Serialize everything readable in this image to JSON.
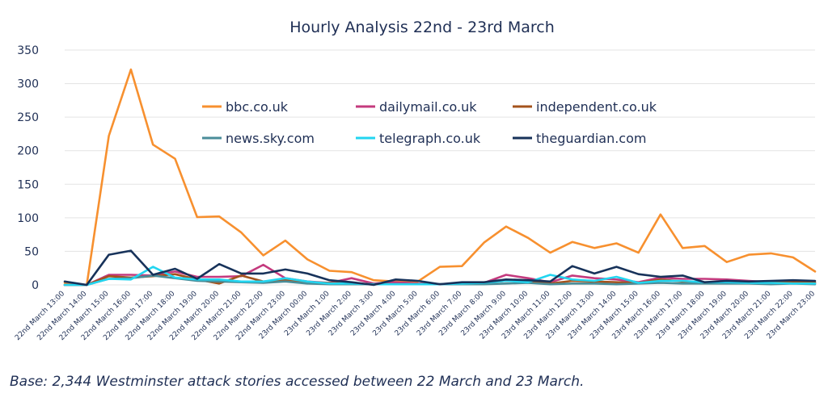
{
  "caption": "Base: 2,344 Westminster attack stories accessed between 22 March and 23 March.",
  "chart_data": {
    "type": "line",
    "title": "Hourly Analysis 22nd - 23rd March",
    "xlabel": "",
    "ylabel": "",
    "ylim": [
      0,
      350
    ],
    "yticks": [
      0,
      50,
      100,
      150,
      200,
      250,
      300,
      350
    ],
    "grid": true,
    "legend_position": "inside-top-center",
    "categories": [
      "22nd March 13:00",
      "22nd March 14:00",
      "22nd March 15:00",
      "22nd March 16:00",
      "22nd March 17:00",
      "22nd March 18:00",
      "22nd March 19:00",
      "22nd March 20:00",
      "22nd March 21:00",
      "22nd March 22:00",
      "22nd March 23:00",
      "23rd March 00:00",
      "23rd March 1:00",
      "23rd March 2:00",
      "23rd March 3:00",
      "23rd March 4:00",
      "23rd March 5:00",
      "23rd March 6:00",
      "23rd March 7:00",
      "23rd March 8:00",
      "23rd March 9:00",
      "23rd March 10:00",
      "23rd March 11:00",
      "23rd March 12:00",
      "23rd March 13:00",
      "23rd March 14:00",
      "23rd March 15:00",
      "23rd March 16:00",
      "23rd March 17:00",
      "23rd March 18:00",
      "23rd March 19:00",
      "23rd March 20:00",
      "23rd March 21:00",
      "23rd March 22:00",
      "23rd March 23:00"
    ],
    "series": [
      {
        "name": "bbc.co.uk",
        "color": "#f7902f",
        "values": [
          3,
          0,
          222,
          321,
          209,
          188,
          101,
          102,
          78,
          44,
          66,
          38,
          21,
          19,
          7,
          5,
          5,
          27,
          28,
          63,
          87,
          70,
          48,
          64,
          55,
          62,
          48,
          105,
          55,
          58,
          34,
          45,
          47,
          41,
          20
        ]
      },
      {
        "name": "dailymail.co.uk",
        "color": "#c43a7e",
        "values": [
          0,
          0,
          15,
          15,
          14,
          20,
          12,
          12,
          13,
          30,
          10,
          5,
          3,
          10,
          2,
          4,
          2,
          1,
          1,
          3,
          15,
          10,
          4,
          14,
          10,
          8,
          4,
          11,
          9,
          9,
          8,
          6,
          4,
          5,
          3
        ]
      },
      {
        "name": "independent.co.uk",
        "color": "#a4531c",
        "values": [
          0,
          0,
          13,
          11,
          13,
          16,
          8,
          2,
          14,
          5,
          7,
          4,
          3,
          2,
          1,
          1,
          1,
          1,
          2,
          3,
          6,
          5,
          2,
          6,
          5,
          4,
          3,
          8,
          5,
          3,
          4,
          3,
          4,
          5,
          4
        ]
      },
      {
        "name": "news.sky.com",
        "color": "#4a8d99",
        "values": [
          0,
          0,
          9,
          10,
          14,
          10,
          6,
          5,
          4,
          3,
          5,
          2,
          1,
          1,
          1,
          1,
          1,
          1,
          1,
          1,
          2,
          3,
          1,
          2,
          2,
          1,
          2,
          3,
          2,
          2,
          2,
          2,
          1,
          2,
          1
        ]
      },
      {
        "name": "telegraph.co.uk",
        "color": "#22d5f0",
        "values": [
          0,
          0,
          9,
          8,
          27,
          11,
          8,
          8,
          5,
          5,
          10,
          5,
          2,
          2,
          1,
          1,
          1,
          1,
          2,
          3,
          6,
          4,
          15,
          8,
          6,
          12,
          3,
          6,
          6,
          4,
          4,
          3,
          3,
          2,
          2
        ]
      },
      {
        "name": "theguardian.com",
        "color": "#17325a",
        "values": [
          5,
          0,
          45,
          51,
          15,
          24,
          9,
          31,
          17,
          17,
          23,
          17,
          7,
          4,
          0,
          8,
          6,
          1,
          4,
          4,
          8,
          7,
          5,
          28,
          17,
          27,
          16,
          12,
          14,
          4,
          6,
          5,
          6,
          7,
          6
        ]
      }
    ]
  }
}
